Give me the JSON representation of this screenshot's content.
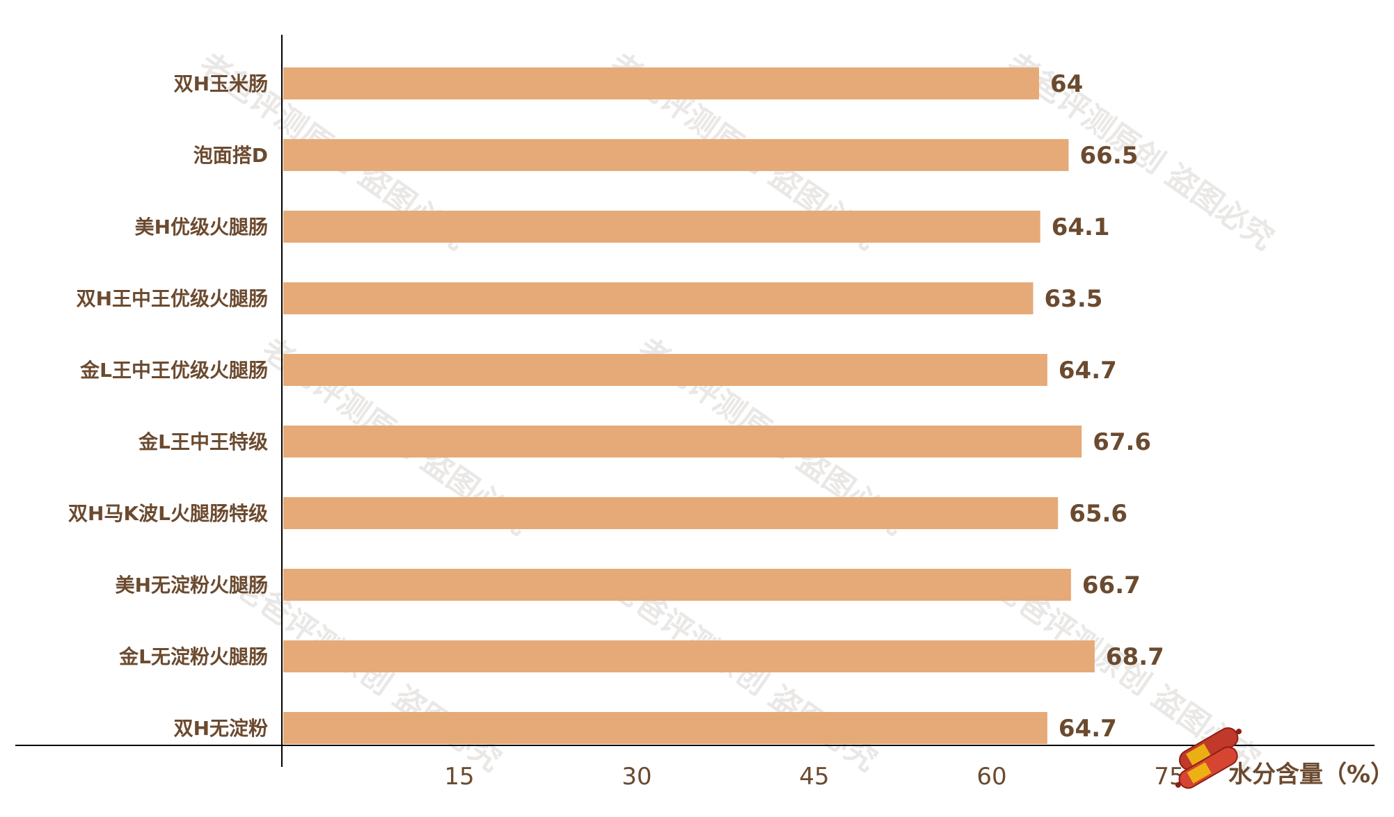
{
  "chart_data": {
    "type": "bar",
    "orientation": "horizontal",
    "categories": [
      "双H玉米肠",
      "泡面搭D",
      "美H优级火腿肠",
      "双H王中王优级火腿肠",
      "金L王中王优级火腿肠",
      "金L王中王特级",
      "双H马K波L火腿肠特级",
      "美H无淀粉火腿肠",
      "金L无淀粉火腿肠",
      "双H无淀粉"
    ],
    "values": [
      64,
      66.5,
      64.1,
      63.5,
      64.7,
      67.6,
      65.6,
      66.7,
      68.7,
      64.7
    ],
    "value_labels": [
      "64",
      "66.5",
      "64.1",
      "63.5",
      "64.7",
      "67.6",
      "65.6",
      "66.7",
      "68.7",
      "64.7"
    ],
    "x_ticks": [
      15,
      30,
      45,
      60,
      75
    ],
    "xlim": [
      0,
      82
    ],
    "xlabel": "水分含量（%）",
    "ylabel": "",
    "title": "",
    "grid": false,
    "legend": "none",
    "watermark": "老爸评测原创 盗图必究"
  },
  "colors": {
    "bar": "#e5aa78",
    "text": "#6b4a2f",
    "axis": "#000000",
    "watermark": "#d9d6d2"
  }
}
